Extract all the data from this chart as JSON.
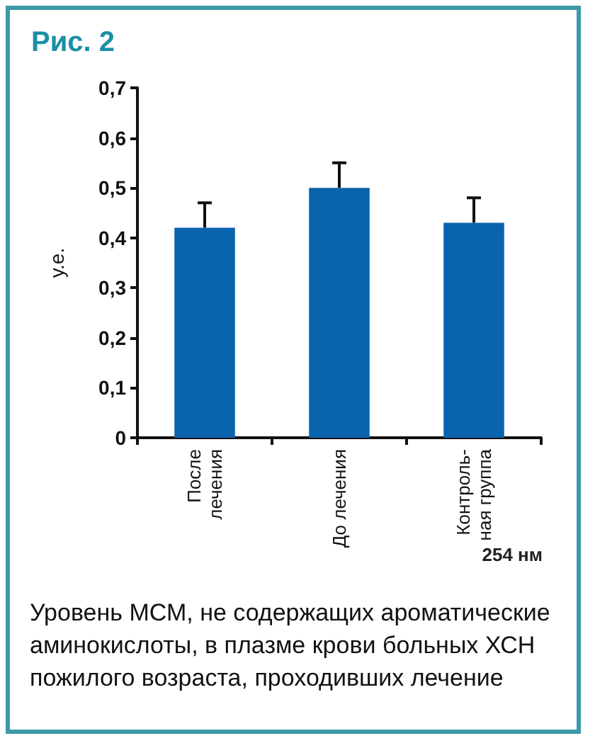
{
  "chart_data": {
    "type": "bar",
    "title": "Рис. 2",
    "ylabel": "у.е.",
    "categories": [
      "После\nлечения",
      "До лечения",
      "Контроль-\nная группа"
    ],
    "values": [
      0.42,
      0.5,
      0.43
    ],
    "color": "#0a63ad",
    "errors": [
      [
        0.42,
        0.47
      ],
      [
        0.5,
        0.55
      ],
      [
        0.43,
        0.48
      ]
    ],
    "ylim": [
      0,
      0.7
    ],
    "yticks": [
      0,
      {
        "value": 0.1,
        "label": "0,1"
      },
      {
        "value": 0.2,
        "label": "0,2"
      },
      {
        "value": 0.3,
        "label": "0,3"
      },
      {
        "value": 0.4,
        "label": "0,4"
      },
      {
        "value": 0.5,
        "label": "0,5"
      },
      {
        "value": 0.6,
        "label": "0,6"
      },
      {
        "value": 0.7,
        "label": "0,7"
      }
    ],
    "grid": false,
    "annotations": [
      "254 нм",
      "Уровень МСМ, не содержащих ароматические аминокислоты, в плазме крови больных ХСН пожилого возраста, проходивших лечение"
    ]
  }
}
